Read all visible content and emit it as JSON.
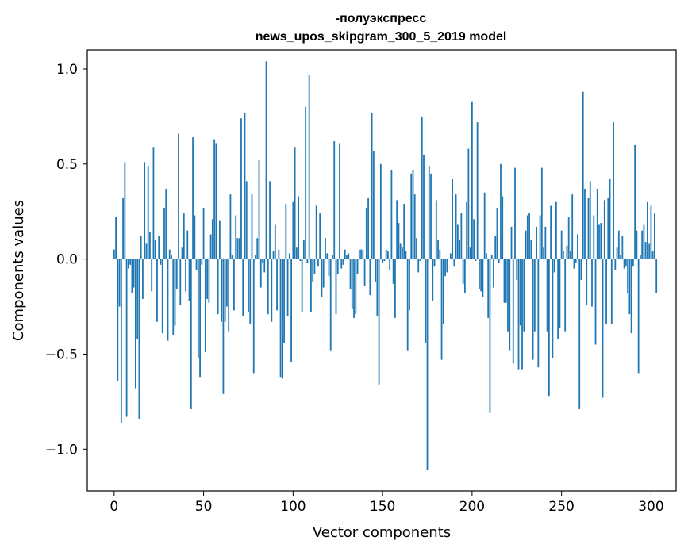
{
  "chart_data": {
    "type": "bar",
    "title_line1": "-полуэкспресс",
    "title_line2": "news_upos_skipgram_300_5_2019 model",
    "xlabel": "Vector components",
    "ylabel": "Components values",
    "xlim": [
      -15,
      314
    ],
    "ylim": [
      -1.22,
      1.1
    ],
    "xticks": [
      0,
      50,
      100,
      150,
      200,
      250,
      300
    ],
    "yticks": [
      1.0,
      0.5,
      0.0,
      -0.5,
      -1.0
    ],
    "xtick_labels": [
      "0",
      "50",
      "100",
      "150",
      "200",
      "250",
      "300"
    ],
    "ytick_labels": [
      "1.0",
      "0.5",
      "0.0",
      "−0.5",
      "−1.0"
    ],
    "bar_color": "#1f77b4",
    "grid": false,
    "values": [
      0.05,
      0.22,
      -0.64,
      -0.25,
      -0.86,
      0.32,
      0.51,
      -0.83,
      -0.05,
      -0.03,
      -0.18,
      -0.15,
      -0.68,
      -0.42,
      -0.84,
      0.12,
      -0.21,
      0.51,
      0.08,
      0.49,
      0.14,
      -0.17,
      0.59,
      0.1,
      -0.33,
      0.12,
      -0.03,
      -0.39,
      0.27,
      0.37,
      -0.43,
      0.05,
      0.02,
      -0.4,
      -0.35,
      -0.16,
      0.66,
      -0.24,
      0.06,
      0.24,
      -0.17,
      0.15,
      -0.22,
      -0.79,
      0.64,
      0.23,
      -0.06,
      -0.52,
      -0.62,
      -0.03,
      0.27,
      -0.49,
      -0.21,
      -0.23,
      0.13,
      0.21,
      0.63,
      0.61,
      -0.29,
      0.2,
      -0.33,
      -0.71,
      -0.33,
      -0.25,
      -0.38,
      0.34,
      0.02,
      -0.27,
      0.23,
      0.11,
      0.11,
      0.74,
      -0.3,
      0.77,
      0.41,
      -0.28,
      -0.34,
      0.34,
      -0.6,
      0.02,
      0.11,
      0.52,
      -0.15,
      -0.02,
      -0.07,
      1.04,
      -0.29,
      0.41,
      -0.33,
      0.04,
      0.18,
      -0.27,
      0.05,
      -0.62,
      -0.63,
      -0.44,
      0.29,
      -0.3,
      0.03,
      -0.54,
      0.3,
      0.59,
      0.06,
      0.33,
      -0.01,
      -0.28,
      0.1,
      0.8,
      -0.02,
      0.97,
      -0.28,
      -0.12,
      -0.08,
      0.28,
      -0.04,
      0.24,
      -0.2,
      -0.15,
      0.11,
      0.03,
      -0.09,
      -0.48,
      0.02,
      0.62,
      -0.29,
      -0.08,
      0.61,
      -0.05,
      -0.03,
      0.05,
      0.02,
      0.03,
      -0.16,
      -0.26,
      -0.31,
      -0.29,
      -0.08,
      0.05,
      0.05,
      0.05,
      -0.14,
      0.27,
      0.32,
      -0.19,
      0.77,
      0.57,
      -0.12,
      -0.3,
      -0.66,
      0.5,
      -0.02,
      -0.01,
      0.05,
      0.04,
      -0.06,
      0.47,
      -0.13,
      -0.31,
      0.31,
      0.19,
      0.08,
      0.06,
      0.29,
      0.04,
      -0.48,
      -0.27,
      0.45,
      0.47,
      0.34,
      0.11,
      -0.07,
      -0.01,
      0.75,
      0.55,
      -0.44,
      -1.11,
      0.49,
      0.45,
      -0.22,
      -0.04,
      0.31,
      0.1,
      0.05,
      -0.53,
      -0.34,
      -0.09,
      -0.07,
      0.0,
      0.03,
      0.42,
      -0.04,
      0.34,
      0.18,
      0.1,
      0.24,
      -0.13,
      -0.18,
      0.3,
      0.58,
      0.06,
      0.83,
      0.21,
      -0.01,
      0.72,
      -0.16,
      -0.17,
      -0.2,
      0.35,
      0.03,
      -0.31,
      -0.81,
      0.02,
      -0.15,
      0.12,
      0.27,
      -0.02,
      0.5,
      0.33,
      -0.23,
      -0.23,
      -0.38,
      -0.48,
      0.17,
      -0.55,
      0.48,
      -0.11,
      -0.58,
      -0.35,
      -0.58,
      -0.38,
      0.15,
      0.23,
      0.24,
      0.1,
      -0.53,
      -0.38,
      0.17,
      -0.57,
      0.23,
      0.48,
      0.06,
      0.17,
      -0.38,
      -0.72,
      0.28,
      -0.52,
      -0.07,
      0.3,
      -0.42,
      -0.36,
      0.15,
      0.04,
      -0.38,
      0.07,
      0.22,
      0.04,
      0.34,
      -0.05,
      -0.02,
      0.13,
      -0.79,
      -0.11,
      0.88,
      0.37,
      -0.24,
      0.32,
      0.41,
      -0.25,
      0.23,
      -0.45,
      0.37,
      0.18,
      0.19,
      -0.73,
      0.31,
      -0.34,
      0.32,
      0.42,
      -0.34,
      0.72,
      -0.06,
      0.06,
      0.15,
      0.02,
      0.12,
      -0.05,
      -0.04,
      -0.18,
      -0.29,
      -0.39,
      -0.04,
      0.6,
      0.15,
      -0.6,
      0.02,
      0.15,
      0.18,
      0.09,
      0.3,
      0.08,
      0.28,
      0.04,
      0.24,
      -0.18
    ]
  }
}
